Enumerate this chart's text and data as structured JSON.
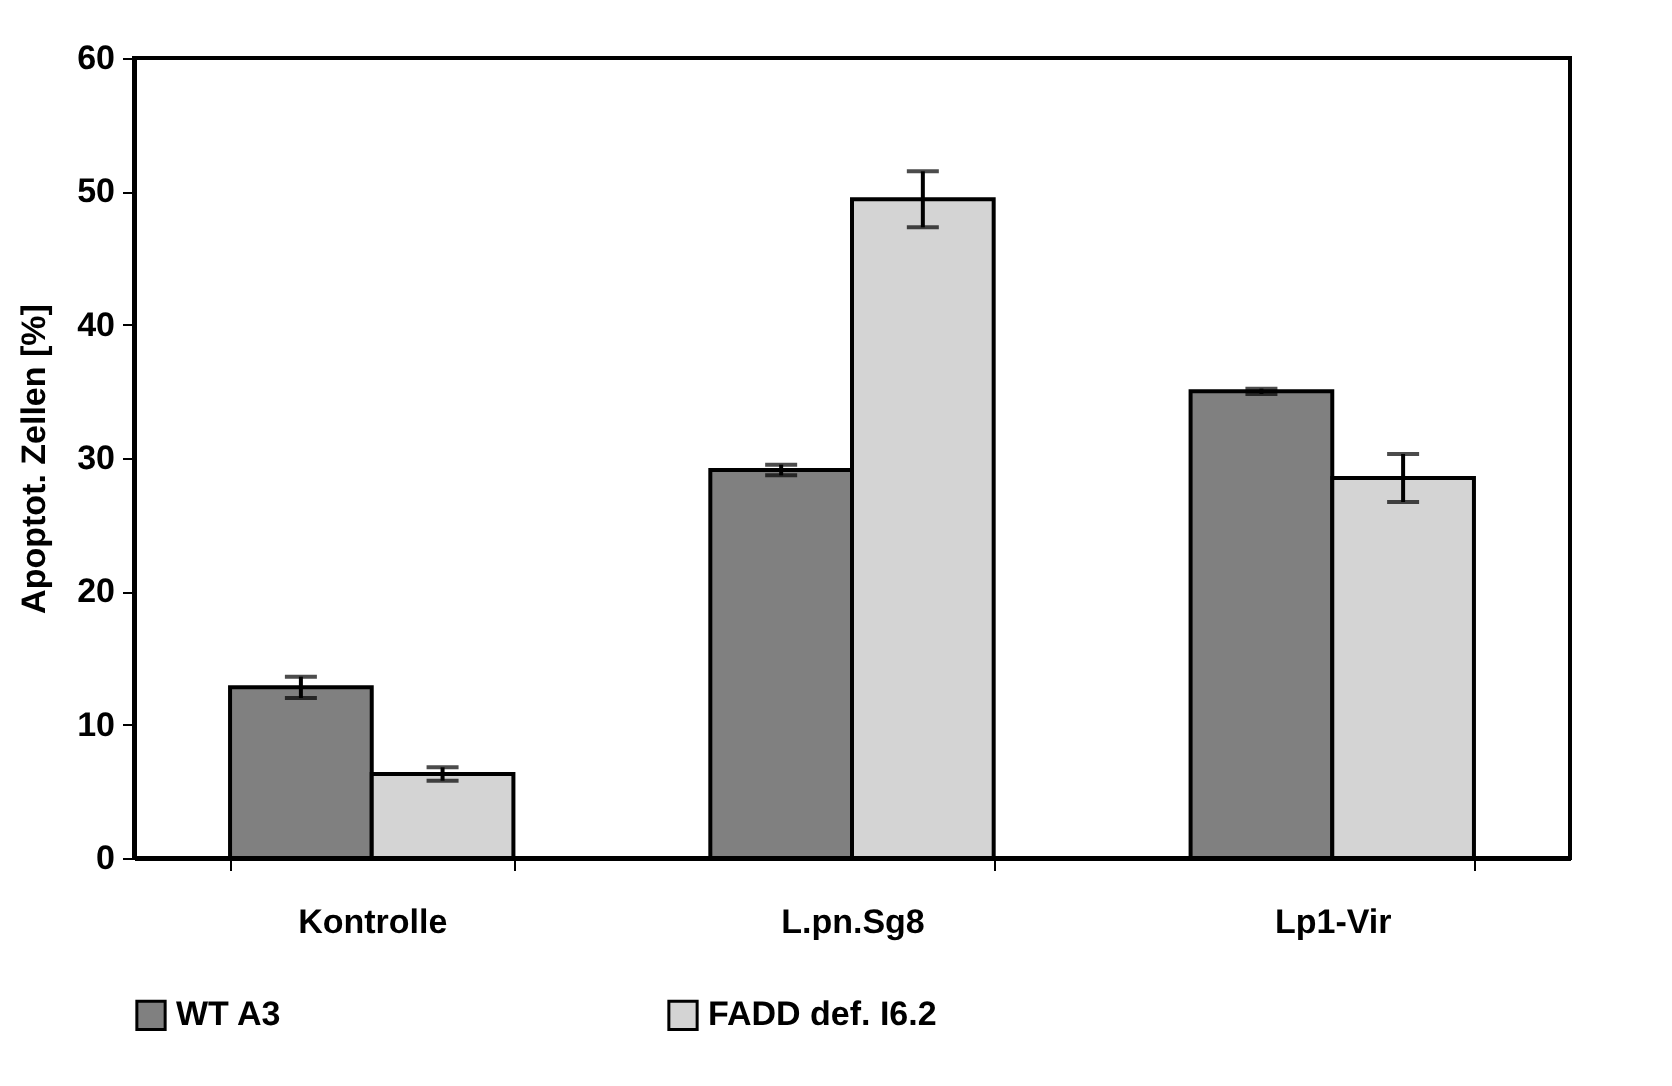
{
  "chart_data": {
    "type": "bar",
    "ylabel": "Apoptot. Zellen [%]",
    "categories": [
      "Kontrolle",
      "L.pn.Sg8",
      "Lp1-Vir"
    ],
    "series": [
      {
        "name": "WT A3",
        "color": "#808080",
        "values": [
          12.8,
          29.1,
          35.0
        ],
        "errors": [
          0.8,
          0.4,
          0.2
        ]
      },
      {
        "name": "FADD def. I6.2",
        "color": "#d4d4d4",
        "values": [
          6.3,
          49.4,
          28.5
        ],
        "errors": [
          0.5,
          2.1,
          1.8
        ]
      }
    ],
    "ylim": [
      0,
      60
    ],
    "yticks": [
      0,
      10,
      20,
      30,
      40,
      50,
      60
    ],
    "grid": false,
    "legend": "bottom"
  }
}
